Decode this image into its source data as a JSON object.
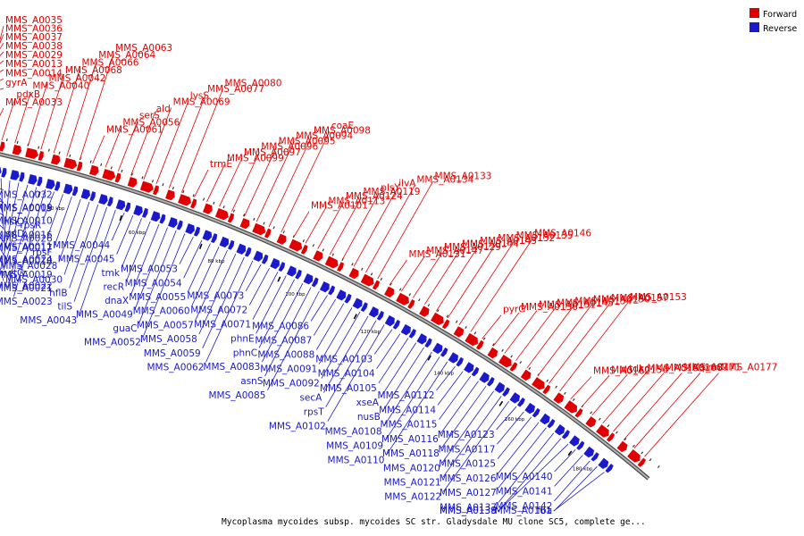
{
  "caption": "Mycoplasma mycoides subsp. mycoides SC str. Gladysdale MU clone SC5, complete ge...",
  "legend": [
    {
      "label": "Forward",
      "color": "#e00000"
    },
    {
      "label": "Reverse",
      "color": "#1a1acc"
    }
  ],
  "colors": {
    "forward": "#e00000",
    "reverse": "#1a1acc",
    "backbone": "#888888"
  },
  "ticks": [
    "20 kbp",
    "40 kbp",
    "60 kbp",
    "80 kbp",
    "100 kbp",
    "120 kbp",
    "140 kbp",
    "160 kbp",
    "180 kbp"
  ],
  "forward_labels": [
    "gyrA",
    "MMS_A0014",
    "MMS_A0013",
    "MMS_A0029",
    "MMS_A0038",
    "MMS_A0037",
    "MMS_A0036",
    "MMS_A0035",
    "MMS_A0033",
    "pdxB",
    "MMS_A0040",
    "MMS_A0042",
    "MMS_A0068",
    "MMS_A0066",
    "MMS_A0064",
    "MMS_A0063",
    "MMS_A0061",
    "MMS_A0056",
    "serS",
    "ald",
    "MMS_A0069",
    "lysS",
    "MMS_A0077",
    "MMS_A0080",
    "trmE",
    "MMS_A0099",
    "MMS_A0097",
    "MMS_A0096",
    "MMS_A0095",
    "MMS_A0094",
    "MMS_A0098",
    "coaE",
    "MMS_A0101",
    "MMS_A0113",
    "MMS_A0124",
    "MMS_A0119",
    "plsY",
    "ilvA",
    "MMS_A0134",
    "MMS_A0133",
    "MMS_A0131",
    "MMS_A0147",
    "MMS_A0129",
    "MMS_A0144",
    "MMS_A0143",
    "MMS_A0132",
    "MMS_A0135",
    "MMS_A0146",
    "pyrG",
    "MMS_A0136",
    "MMS_A0151",
    "MMS_A0145",
    "MMS_A0154",
    "MMS_A0150",
    "MMS_A0157",
    "MMS_A0153",
    "MMS_A0162",
    "MMS_A0156",
    "tdk",
    "MMS_A0163",
    "MMS_A0168",
    "MMS_A0171",
    "prmC",
    "MMS_A0177"
  ],
  "reverse_labels": [
    "MMS_A0032",
    "MMS_A0009",
    "MMS_A0010",
    "sriD",
    "MMS_A0011",
    "MMS_A0024",
    "metG",
    "MMS_A0022",
    "MMS_A0015",
    "hslO",
    "MMS_A0016",
    "MMS_A0017",
    "MMS_A0018",
    "MMS_A0019",
    "MMS_A0021",
    "MMS_A0023",
    "rpsR",
    "MMS_A0026",
    "rpsF",
    "MMS_A0028",
    "MMS_A0030",
    "hflB",
    "tilS",
    "MMS_A0043",
    "MMS_A0044",
    "MMS_A0045",
    "tmk",
    "recR",
    "dnaX",
    "MMS_A0049",
    "guaC",
    "MMS_A0052",
    "MMS_A0053",
    "MMS_A0054",
    "MMS_A0055",
    "MMS_A0060",
    "MMS_A0057",
    "MMS_A0058",
    "MMS_A0059",
    "MMS_A0062",
    "MMS_A0073",
    "MMS_A0072",
    "MMS_A0071",
    "phnE",
    "phnC",
    "MMS_A0083",
    "asnS",
    "MMS_A0085",
    "MMS_A0086",
    "MMS_A0087",
    "MMS_A0088",
    "MMS_A0091",
    "MMS_A0092",
    "secA",
    "rpsT",
    "MMS_A0102",
    "MMS_A0103",
    "MMS_A0104",
    "MMS_A0105",
    "xseA",
    "nusB",
    "MMS_A0108",
    "MMS_A0109",
    "MMS_A0110",
    "MMS_A0112",
    "MMS_A0114",
    "MMS_A0115",
    "MMS_A0116",
    "MMS_A0118",
    "MMS_A0120",
    "MMS_A0121",
    "MMS_A0122",
    "MMS_A0123",
    "MMS_A0117",
    "MMS_A0125",
    "MMS_A0126",
    "MMS_A0127",
    "MMS_A0137",
    "MMS_A0138",
    "MMS_A0139",
    "MMS_A0140",
    "MMS_A0141",
    "MMS_A0142",
    "fba",
    "MMS_A0161"
  ]
}
